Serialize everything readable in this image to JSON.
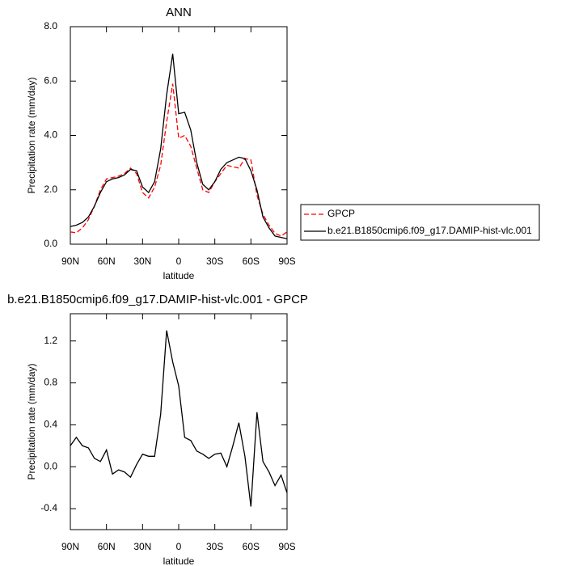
{
  "chart_data": [
    {
      "type": "line",
      "title": "ANN",
      "x_label": "latitude",
      "y_label": "Precipitation rate (mm/day)",
      "x": [
        90,
        85,
        80,
        75,
        70,
        65,
        60,
        55,
        50,
        45,
        40,
        35,
        30,
        25,
        20,
        15,
        10,
        5,
        0,
        -5,
        -10,
        -15,
        -20,
        -25,
        -30,
        -35,
        -40,
        -45,
        -50,
        -55,
        -60,
        -65,
        -70,
        -75,
        -80,
        -85,
        -90
      ],
      "xlim": [
        90,
        -90
      ],
      "xticks": [
        {
          "value": 90,
          "label": "90N"
        },
        {
          "value": 60,
          "label": "60N"
        },
        {
          "value": 30,
          "label": "30N"
        },
        0,
        {
          "value": -30,
          "label": "30S"
        },
        {
          "value": -60,
          "label": "60S"
        },
        {
          "value": -90,
          "label": "90S"
        }
      ],
      "ylim": [
        0,
        8
      ],
      "yticks": [
        {
          "value": 0,
          "label": "0.0"
        },
        {
          "value": 2,
          "label": "2.0"
        },
        {
          "value": 4,
          "label": "4.0"
        },
        {
          "value": 6,
          "label": "6.0"
        },
        {
          "value": 8,
          "label": "8.0"
        }
      ],
      "legend": "right",
      "series": [
        {
          "name": "GPCP",
          "color": "#ff0000",
          "dashed": true,
          "values": [
            0.45,
            0.42,
            0.6,
            0.9,
            1.4,
            2.0,
            2.4,
            2.45,
            2.5,
            2.6,
            2.8,
            2.6,
            1.9,
            1.7,
            2.1,
            2.9,
            4.5,
            5.9,
            3.9,
            4.0,
            3.6,
            2.8,
            2.0,
            1.9,
            2.3,
            2.6,
            2.9,
            2.85,
            2.8,
            3.15,
            3.1,
            1.8,
            1.1,
            0.7,
            0.4,
            0.3,
            0.45
          ]
        },
        {
          "name": "b.e21.B1850cmip6.f09_g17.DAMIP-hist-vlc.001",
          "color": "#000000",
          "dashed": false,
          "values": [
            0.65,
            0.7,
            0.8,
            1.0,
            1.4,
            1.9,
            2.3,
            2.4,
            2.45,
            2.55,
            2.75,
            2.7,
            2.1,
            1.9,
            2.3,
            3.5,
            5.5,
            7.0,
            4.8,
            4.85,
            4.2,
            3.0,
            2.2,
            2.0,
            2.3,
            2.75,
            3.0,
            3.1,
            3.2,
            3.15,
            2.7,
            2.0,
            1.0,
            0.6,
            0.3,
            0.25,
            0.2
          ]
        }
      ]
    },
    {
      "type": "line",
      "title": "b.e21.B1850cmip6.f09_g17.DAMIP-hist-vlc.001 - GPCP",
      "x_label": "latitude",
      "y_label": "Precipitation rate (mm/day)",
      "x": [
        90,
        85,
        80,
        75,
        70,
        65,
        60,
        55,
        50,
        45,
        40,
        35,
        30,
        25,
        20,
        15,
        10,
        5,
        0,
        -5,
        -10,
        -15,
        -20,
        -25,
        -30,
        -35,
        -40,
        -45,
        -50,
        -55,
        -60,
        -65,
        -70,
        -75,
        -80,
        -85,
        -90
      ],
      "xlim": [
        90,
        -90
      ],
      "xticks": [
        {
          "value": 90,
          "label": "90N"
        },
        {
          "value": 60,
          "label": "60N"
        },
        {
          "value": 30,
          "label": "30N"
        },
        0,
        {
          "value": -30,
          "label": "30S"
        },
        {
          "value": -60,
          "label": "60S"
        },
        {
          "value": -90,
          "label": "90S"
        }
      ],
      "ylim": [
        -0.6,
        1.46
      ],
      "yticks": [
        -0.4,
        {
          "value": 0,
          "label": "0.0"
        },
        0.4,
        0.8,
        1.2
      ],
      "series": [
        {
          "color": "#000000",
          "dashed": false,
          "values": [
            0.2,
            0.28,
            0.2,
            0.18,
            0.08,
            0.05,
            0.16,
            -0.07,
            -0.03,
            -0.05,
            -0.1,
            0.02,
            0.12,
            0.1,
            0.1,
            0.5,
            1.3,
            1.0,
            0.77,
            0.28,
            0.25,
            0.15,
            0.12,
            0.08,
            0.12,
            0.13,
            0.0,
            0.2,
            0.42,
            0.1,
            -0.38,
            0.52,
            0.05,
            -0.05,
            -0.18,
            -0.08,
            -0.25
          ]
        }
      ]
    }
  ]
}
